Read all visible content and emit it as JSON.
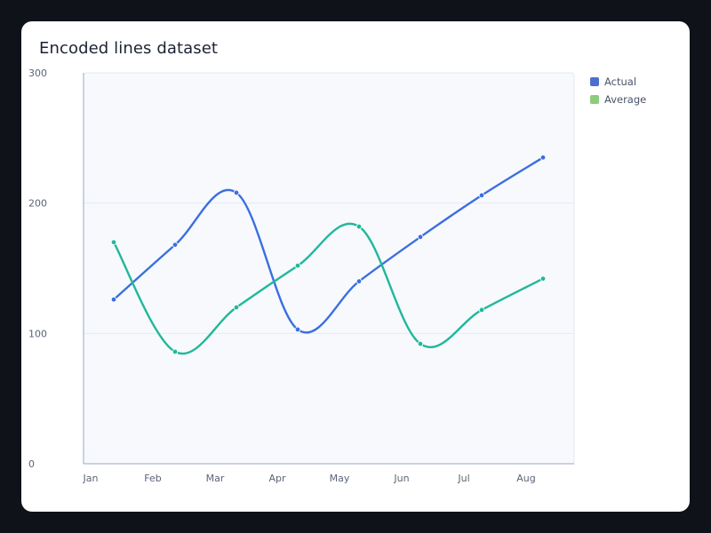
{
  "card": {
    "title": "Encoded lines dataset"
  },
  "chart_data": {
    "type": "line",
    "title": "Encoded lines dataset",
    "categories": [
      "Jan",
      "Feb",
      "Mar",
      "Apr",
      "May",
      "Jun",
      "Jul",
      "Aug"
    ],
    "yticks": [
      "0",
      "100",
      "200",
      "300"
    ],
    "ylim": [
      0,
      300
    ],
    "grid": true,
    "legend_position": "top-right",
    "series": [
      {
        "name": "Actual",
        "color": "#3b6fe0",
        "values": [
          126,
          168,
          208,
          103,
          140,
          174,
          206,
          235
        ]
      },
      {
        "name": "Average",
        "color": "#20b89a",
        "values": [
          170,
          86,
          120,
          152,
          182,
          92,
          118,
          142
        ]
      }
    ]
  },
  "legend": [
    {
      "label": "Actual",
      "color": "#4a6fd1"
    },
    {
      "label": "Average",
      "color": "#8ccc7a"
    }
  ]
}
